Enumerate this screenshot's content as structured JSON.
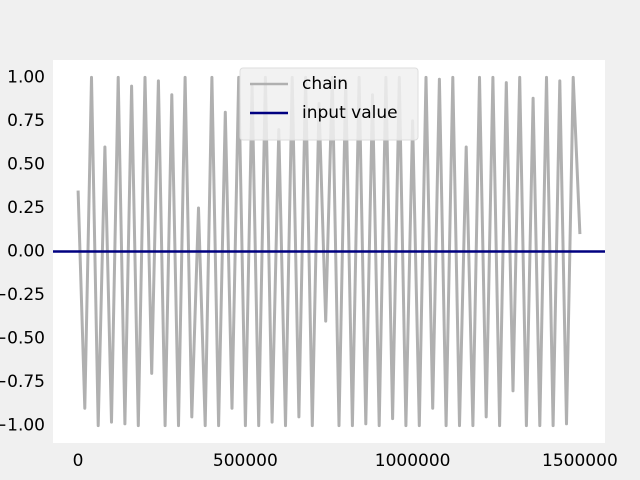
{
  "chart_data": {
    "type": "line",
    "series": [
      {
        "name": "chain",
        "color": "#b0b0b0",
        "x": [
          0,
          20000,
          40000,
          60000,
          80000,
          100000,
          120000,
          140000,
          160000,
          180000,
          200000,
          220000,
          240000,
          260000,
          280000,
          300000,
          320000,
          340000,
          360000,
          380000,
          400000,
          420000,
          440000,
          460000,
          480000,
          500000,
          520000,
          540000,
          560000,
          580000,
          600000,
          620000,
          640000,
          660000,
          680000,
          700000,
          720000,
          740000,
          760000,
          780000,
          800000,
          820000,
          840000,
          860000,
          880000,
          900000,
          920000,
          940000,
          960000,
          980000,
          1000000,
          1020000,
          1040000,
          1060000,
          1080000,
          1100000,
          1120000,
          1140000,
          1160000,
          1180000,
          1200000,
          1220000,
          1240000,
          1260000,
          1280000,
          1300000,
          1320000,
          1340000,
          1360000,
          1380000,
          1400000,
          1420000,
          1440000,
          1460000,
          1480000,
          1500000
        ],
        "values": [
          0.35,
          -0.9,
          1,
          -1,
          0.6,
          -0.98,
          1,
          -0.99,
          0.95,
          -1,
          1,
          -0.7,
          0.98,
          -1,
          0.9,
          -1,
          1,
          -0.95,
          0.25,
          -1,
          1,
          -1,
          0.8,
          -0.9,
          1,
          -1,
          0.95,
          -1,
          1,
          -0.98,
          0.7,
          -1,
          1,
          -0.95,
          1,
          -1,
          0.85,
          -0.4,
          1,
          -1,
          0.98,
          -1,
          1,
          -0.99,
          0.9,
          -1,
          1,
          -0.96,
          1,
          -1,
          0.75,
          -1,
          1,
          -0.9,
          0.99,
          -1,
          1,
          -1,
          0.6,
          -1,
          1,
          -0.95,
          1,
          -1,
          0.97,
          -0.8,
          1,
          -1,
          0.88,
          -1,
          1,
          -1,
          0.98,
          -0.99,
          1,
          0.1
        ]
      }
    ],
    "hlines": [
      {
        "name": "input value",
        "color": "#000080",
        "value": 0
      }
    ],
    "xlim": [
      -75000,
      1575000
    ],
    "ylim": [
      -1.1,
      1.1
    ],
    "xticks": [
      0,
      500000,
      1000000,
      1500000
    ],
    "yticks": [
      {
        "value": 1,
        "label": "1.00"
      },
      {
        "value": 0.75,
        "label": "0.75"
      },
      {
        "value": 0.5,
        "label": "0.50"
      },
      {
        "value": 0.25,
        "label": "0.25"
      },
      {
        "value": 0,
        "label": "0.00"
      },
      {
        "value": -0.25,
        "label": "−0.25"
      },
      {
        "value": -0.5,
        "label": "−0.50"
      },
      {
        "value": -0.75,
        "label": "−0.75"
      },
      {
        "value": -1,
        "label": "−1.00"
      }
    ],
    "legend": "upper center"
  }
}
